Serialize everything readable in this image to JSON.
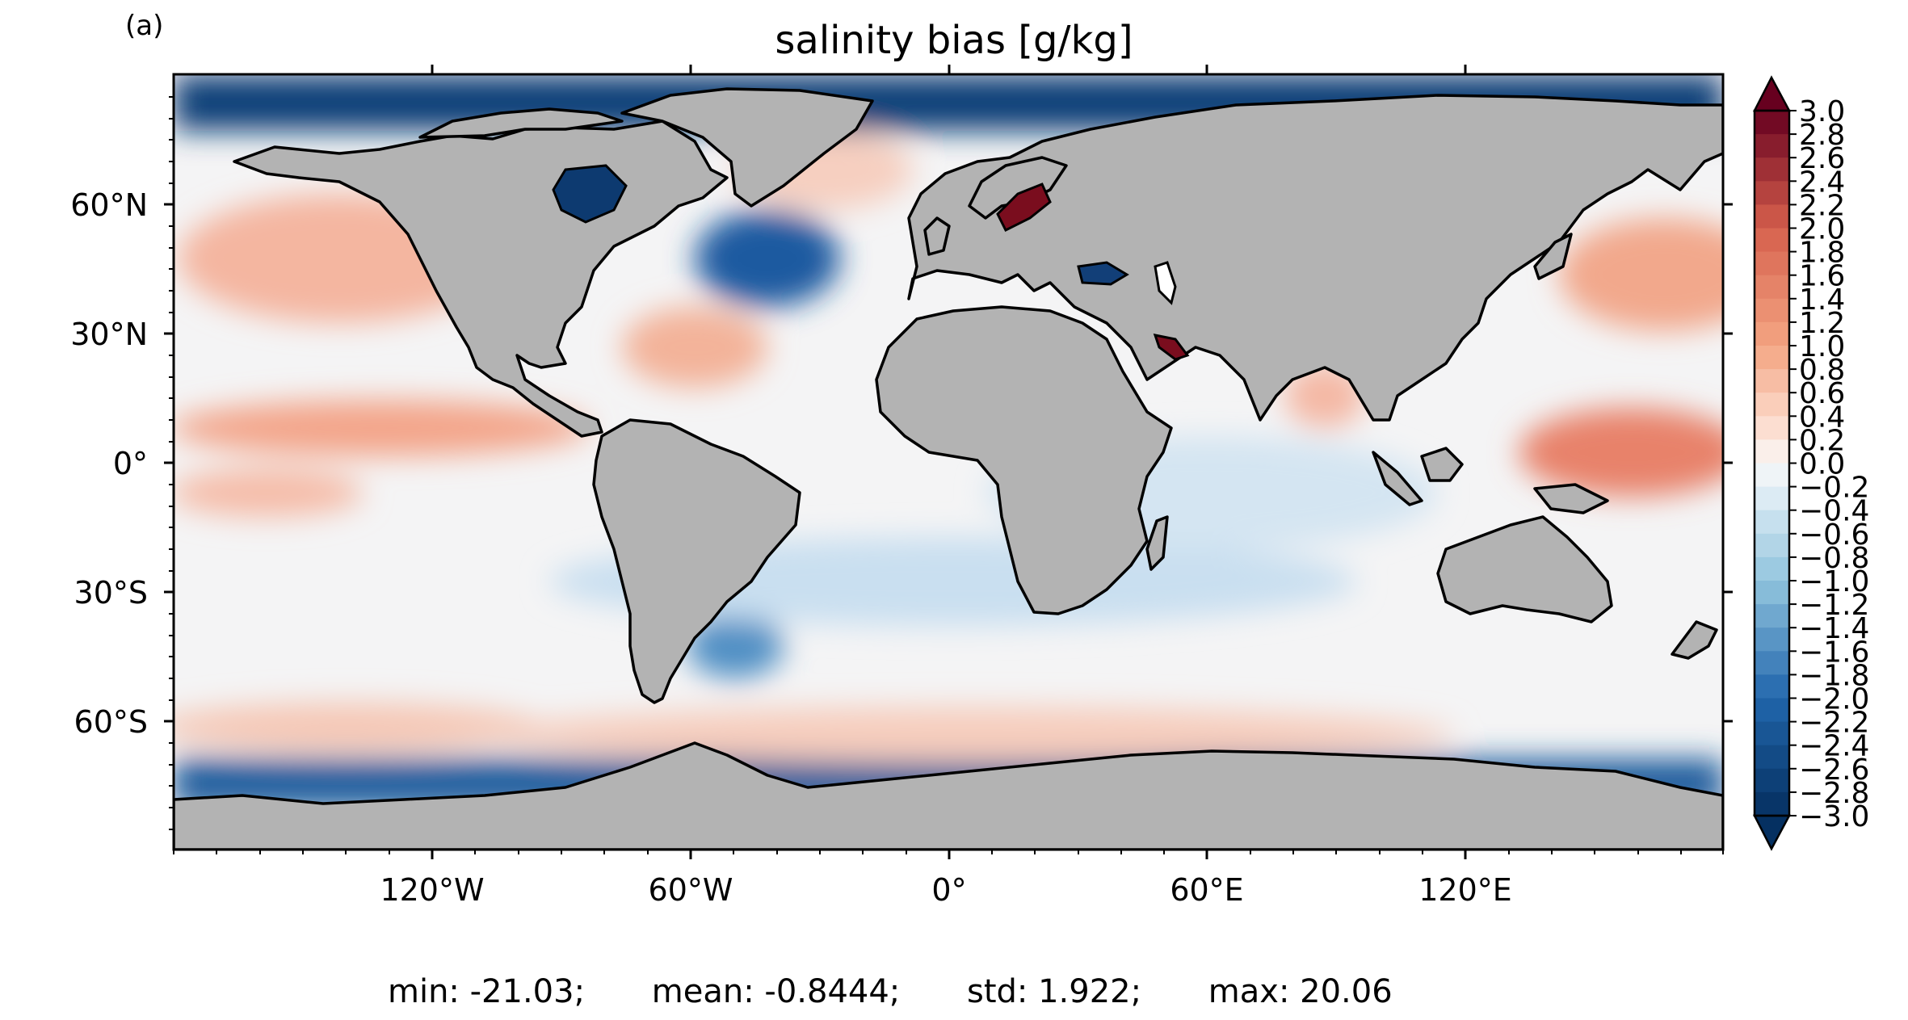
{
  "panel_label": "(a)",
  "title": "salinity bias [g/kg]",
  "axes": {
    "lat_ticks": [
      "60°N",
      "30°N",
      "0°",
      "30°S",
      "60°S"
    ],
    "lon_ticks": [
      "120°W",
      "60°W",
      "0°",
      "60°E",
      "120°E"
    ]
  },
  "colorbar": {
    "min": -3.0,
    "max": 3.0,
    "step": 0.2,
    "extend": "both",
    "colormap": "RdBu_r",
    "tick_labels": [
      "3.0",
      "2.8",
      "2.6",
      "2.4",
      "2.2",
      "2.0",
      "1.8",
      "1.6",
      "1.4",
      "1.2",
      "1.0",
      "0.8",
      "0.6",
      "0.4",
      "0.2",
      "0.0",
      "−0.2",
      "−0.4",
      "−0.6",
      "−0.8",
      "−1.0",
      "−1.2",
      "−1.4",
      "−1.6",
      "−1.8",
      "−2.0",
      "−2.2",
      "−2.4",
      "−2.6",
      "−2.8",
      "−3.0"
    ]
  },
  "colors": {
    "land": "#b3b3b3",
    "coastline": "#000000",
    "neutral_ocean": "#f7f7f7",
    "positive_bias": "#b2182b",
    "negative_bias": "#2166ac"
  },
  "stats": {
    "min": "min: -21.03;",
    "mean": "mean: -0.8444;",
    "std": "std: 1.922;",
    "max": "max: 20.06"
  }
}
